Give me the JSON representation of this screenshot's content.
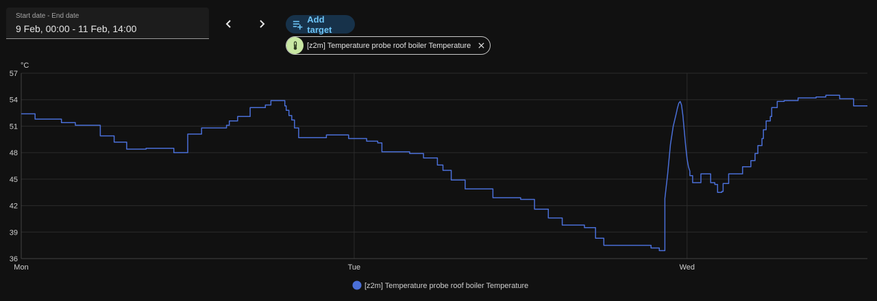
{
  "date_picker": {
    "label": "Start date - End date",
    "value": "9 Feb, 00:00 - 11 Feb, 14:00"
  },
  "nav": {
    "prev_icon": "chevron-left-icon",
    "next_icon": "chevron-right-icon"
  },
  "add_target": {
    "label": "Add target",
    "icon": "playlist-plus-icon",
    "color": "#6cc3f5"
  },
  "target_chip": {
    "label": "[z2m] Temperature probe roof boiler Temperature",
    "icon": "thermometer-icon",
    "close_icon": "close-icon"
  },
  "chart_data": {
    "type": "line",
    "unit_label": "°C",
    "ylim": [
      36,
      57
    ],
    "y_ticks": [
      "57",
      "54",
      "51",
      "48",
      "45",
      "42",
      "39",
      "36"
    ],
    "x_ticks": [
      {
        "label": "Mon",
        "x": 0
      },
      {
        "label": "Tue",
        "x": 24
      },
      {
        "label": "Wed",
        "x": 48
      }
    ],
    "xlim": [
      0,
      61
    ],
    "x_unit": "hours since Mon 00:00",
    "step": true,
    "grid": true,
    "legend_placement": "bottom-center",
    "series": [
      {
        "name": "[z2m] Temperature probe roof boiler Temperature",
        "color": "#4a6fd8",
        "points": [
          [
            0,
            52.4
          ],
          [
            1,
            52.4
          ],
          [
            1.0,
            51.8
          ],
          [
            2,
            51.8
          ],
          [
            2.0,
            51.8
          ],
          [
            2.9,
            51.8
          ],
          [
            2.9,
            51.4
          ],
          [
            3,
            51.4
          ],
          [
            3.0,
            51.4
          ],
          [
            3.9,
            51.4
          ],
          [
            3.9,
            51.1
          ],
          [
            4.0,
            51.1
          ],
          [
            4.0,
            51.1
          ],
          [
            4.8,
            51.1
          ],
          [
            4.8,
            51.1
          ],
          [
            4.9,
            51.1
          ],
          [
            4.9,
            51.1
          ],
          [
            5.0,
            51.1
          ],
          [
            5.0,
            51.1
          ],
          [
            5.7,
            51.1
          ],
          [
            5.7,
            49.9
          ],
          [
            6,
            49.9
          ],
          [
            6.0,
            49.9
          ],
          [
            6.7,
            49.9
          ],
          [
            6.7,
            49.2
          ],
          [
            7,
            49.2
          ],
          [
            7.0,
            49.2
          ],
          [
            7.6,
            49.2
          ],
          [
            7.6,
            48.4
          ],
          [
            8.0,
            48.4
          ],
          [
            8.0,
            48.4
          ],
          [
            9,
            48.4
          ],
          [
            9,
            48.5
          ],
          [
            10,
            48.5
          ],
          [
            10.0,
            48.5
          ],
          [
            11,
            48.5
          ],
          [
            11.0,
            48.5
          ],
          [
            11,
            48.5
          ],
          [
            11,
            48.0
          ],
          [
            12,
            48.0
          ],
          [
            12,
            49.2
          ],
          [
            12,
            49.2
          ],
          [
            12,
            50.1
          ],
          [
            13,
            50.1
          ],
          [
            13.0,
            50.1
          ],
          [
            13,
            50.1
          ],
          [
            13,
            50.8
          ],
          [
            14,
            50.8
          ],
          [
            14.0,
            50.8
          ],
          [
            14.8,
            50.8
          ],
          [
            14.8,
            51.1
          ],
          [
            15.0,
            51.1
          ],
          [
            15.0,
            51.6
          ],
          [
            15.6,
            51.6
          ],
          [
            15.6,
            52.1
          ],
          [
            16,
            52.1
          ],
          [
            16.0,
            52.1
          ],
          [
            16.5,
            52.1
          ],
          [
            16.5,
            53.1
          ],
          [
            17,
            53.1
          ],
          [
            17.0,
            53.1
          ],
          [
            17.6,
            53.1
          ],
          [
            17.6,
            53.4
          ],
          [
            18,
            53.4
          ],
          [
            18.0,
            53.4
          ],
          [
            18,
            53.4
          ],
          [
            18,
            53.9
          ],
          [
            19,
            53.9
          ],
          [
            19,
            53.9
          ],
          [
            19,
            53.9
          ],
          [
            19,
            53.3
          ],
          [
            19.1,
            53.3
          ],
          [
            19.1,
            52.8
          ],
          [
            19.3,
            52.8
          ],
          [
            19.3,
            52.2
          ],
          [
            19.5,
            52.2
          ],
          [
            19.5,
            51.7
          ],
          [
            19.7,
            51.7
          ],
          [
            19.7,
            50.8
          ],
          [
            20,
            50.8
          ],
          [
            20,
            50.7
          ],
          [
            20,
            50.7
          ],
          [
            20,
            49.7
          ],
          [
            21,
            49.7
          ],
          [
            21.0,
            49.7
          ],
          [
            21,
            49.7
          ],
          [
            21,
            49.7
          ],
          [
            22,
            49.7
          ],
          [
            22,
            50.0
          ],
          [
            23,
            50.0
          ],
          [
            23.0,
            50.0
          ],
          [
            23.6,
            50.0
          ],
          [
            23.6,
            49.6
          ],
          [
            24,
            49.6
          ],
          [
            24.0,
            49.6
          ],
          [
            24.9,
            49.6
          ],
          [
            24.9,
            49.3
          ],
          [
            25.1,
            49.3
          ],
          [
            25.1,
            49.3
          ],
          [
            25.7,
            49.3
          ],
          [
            25.7,
            49.1
          ],
          [
            26.0,
            49.1
          ],
          [
            26.0,
            49.1
          ],
          [
            26.0,
            49.1
          ],
          [
            26.0,
            48.1
          ],
          [
            27,
            48.1
          ],
          [
            27.0,
            48.1
          ],
          [
            28,
            48.1
          ],
          [
            28.0,
            47.9
          ],
          [
            29,
            47.9
          ],
          [
            29,
            47.9
          ],
          [
            29,
            47.9
          ],
          [
            29,
            47.4
          ],
          [
            30,
            47.4
          ],
          [
            30,
            46.6
          ],
          [
            30.4,
            46.6
          ],
          [
            30.4,
            46.0
          ],
          [
            31,
            46.0
          ],
          [
            31.0,
            46.0
          ],
          [
            31,
            46.0
          ],
          [
            31,
            44.9
          ],
          [
            32,
            44.9
          ],
          [
            32,
            43.9
          ],
          [
            33,
            43.9
          ],
          [
            33,
            43.9
          ],
          [
            33.0,
            43.9
          ],
          [
            33.0,
            43.9
          ],
          [
            34,
            43.9
          ],
          [
            34,
            42.9
          ],
          [
            35,
            42.9
          ],
          [
            35,
            42.9
          ],
          [
            35,
            42.9
          ],
          [
            35,
            42.9
          ],
          [
            36,
            42.9
          ],
          [
            36,
            42.7
          ],
          [
            37,
            42.7
          ],
          [
            37,
            41.6
          ],
          [
            38,
            41.6
          ],
          [
            38,
            40.6
          ],
          [
            39,
            40.6
          ],
          [
            39,
            39.8
          ],
          [
            40,
            39.8
          ],
          [
            40.0,
            39.8
          ],
          [
            40.6,
            39.8
          ],
          [
            40.6,
            39.5
          ],
          [
            41,
            39.5
          ],
          [
            41,
            39.5
          ],
          [
            41.4,
            39.5
          ],
          [
            41.4,
            38.3
          ],
          [
            42,
            38.3
          ],
          [
            42,
            38.3
          ],
          [
            42,
            38.3
          ],
          [
            42,
            37.5
          ],
          [
            43,
            37.5
          ],
          [
            43.0,
            37.5
          ],
          [
            44,
            37.5
          ],
          [
            44,
            37.5
          ],
          [
            44,
            37.5
          ],
          [
            44.0,
            37.5
          ],
          [
            45,
            37.5
          ],
          [
            45.0,
            37.5
          ],
          [
            45.4,
            37.5
          ],
          [
            45.4,
            37.2
          ],
          [
            46,
            37.2
          ],
          [
            46,
            36.9
          ],
          [
            46,
            36.9
          ],
          [
            46,
            36.9
          ],
          [
            46.4,
            36.9
          ],
          [
            46.4,
            42.8
          ],
          [
            46.6,
            45.6
          ],
          [
            46.8,
            48.9
          ],
          [
            47,
            51.0
          ],
          [
            47.2,
            52.3
          ],
          [
            47.3,
            53.0
          ],
          [
            47.4,
            53.6
          ],
          [
            47.5,
            53.8
          ],
          [
            47.6,
            53.4
          ],
          [
            47.7,
            52.2
          ],
          [
            47.8,
            50.4
          ],
          [
            47.9,
            48.7
          ],
          [
            48,
            47.3
          ],
          [
            48.1,
            46.4
          ],
          [
            48.2,
            45.9
          ],
          [
            48.2,
            45.4
          ],
          [
            48.4,
            45.4
          ],
          [
            48.4,
            44.6
          ],
          [
            49.0,
            44.6
          ],
          [
            49,
            44.6
          ],
          [
            49.0,
            45.6
          ],
          [
            49.7,
            45.6
          ],
          [
            49.7,
            44.6
          ],
          [
            50.0,
            44.6
          ],
          [
            50.0,
            44.4
          ],
          [
            50.2,
            44.4
          ],
          [
            50.2,
            43.5
          ],
          [
            50.5,
            43.5
          ],
          [
            50.5,
            43.6
          ],
          [
            50.6,
            43.6
          ],
          [
            50.6,
            44.5
          ],
          [
            51,
            44.5
          ],
          [
            51,
            45.6
          ],
          [
            52,
            45.6
          ],
          [
            52,
            46.4
          ],
          [
            52.6,
            46.4
          ],
          [
            52.6,
            47.1
          ],
          [
            52.9,
            47.1
          ],
          [
            52.9,
            47.9
          ],
          [
            53.1,
            47.9
          ],
          [
            53.1,
            48.8
          ],
          [
            53.4,
            48.8
          ],
          [
            53.4,
            49.6
          ],
          [
            53.5,
            49.6
          ],
          [
            53.5,
            50.6
          ],
          [
            53.7,
            50.6
          ],
          [
            53.7,
            51.6
          ],
          [
            54,
            51.6
          ],
          [
            54,
            52.1
          ],
          [
            54.1,
            52.1
          ],
          [
            54.1,
            53.1
          ],
          [
            54.5,
            53.1
          ],
          [
            54.5,
            53.8
          ],
          [
            55,
            53.8
          ],
          [
            55,
            53.9
          ],
          [
            56,
            53.9
          ],
          [
            56,
            54.2
          ],
          [
            57,
            54.2
          ],
          [
            57.0,
            54.2
          ],
          [
            57.3,
            54.2
          ],
          [
            57.3,
            54.3
          ],
          [
            58,
            54.3
          ],
          [
            58.0,
            54.5
          ],
          [
            59,
            54.5
          ],
          [
            59,
            54.1
          ],
          [
            60,
            54.1
          ],
          [
            60.0,
            53.3
          ],
          [
            61,
            53.3
          ]
        ]
      }
    ]
  }
}
